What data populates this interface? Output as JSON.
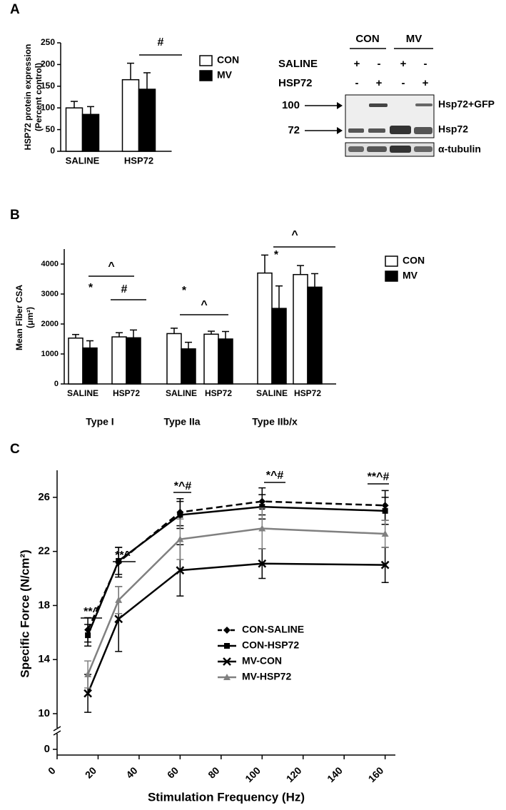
{
  "panels": [
    "A",
    "B",
    "C"
  ],
  "chart_data": [
    {
      "type": "bar",
      "categories": [
        "SALINE",
        "HSP72"
      ],
      "series": [
        {
          "name": "CON",
          "color": "#ffffff",
          "values": [
            100,
            165
          ],
          "errors": [
            15,
            38
          ]
        },
        {
          "name": "MV",
          "color": "#000000",
          "values": [
            85,
            143
          ],
          "errors": [
            18,
            38
          ]
        }
      ],
      "ylim": [
        0,
        250
      ],
      "yticks": [
        0,
        50,
        100,
        150,
        200,
        250
      ],
      "ylabel": [
        "HSP72 protein expression",
        "(Percent control)"
      ],
      "annotations": [
        "#"
      ]
    },
    {
      "type": "bar",
      "categories": [
        "SALINE",
        "HSP72",
        "SALINE",
        "HSP72",
        "SALINE",
        "HSP72"
      ],
      "groups": [
        "Type I",
        "Type IIa",
        "Type IIb/x"
      ],
      "series": [
        {
          "name": "CON",
          "color": "#ffffff",
          "values": [
            1530,
            1570,
            1680,
            1660,
            3700,
            3650
          ],
          "errors": [
            120,
            140,
            180,
            100,
            600,
            300
          ]
        },
        {
          "name": "MV",
          "color": "#000000",
          "values": [
            1200,
            1540,
            1170,
            1500,
            2520,
            3230
          ],
          "errors": [
            240,
            260,
            220,
            250,
            750,
            450
          ]
        }
      ],
      "ylim": [
        0,
        4500
      ],
      "yticks": [
        0,
        1000,
        2000,
        3000,
        4000
      ],
      "ylabel": [
        "Mean Fiber CSA",
        "(μm²)"
      ],
      "annotations": [
        "*",
        "^",
        "#",
        "*",
        "^",
        "*",
        "^"
      ]
    },
    {
      "type": "line",
      "x": [
        15,
        30,
        60,
        100,
        160
      ],
      "series": [
        {
          "name": "CON-SALINE",
          "color": "#000000",
          "marker": "diamond",
          "linestyle": "dashed",
          "values": [
            16.2,
            21.2,
            24.9,
            25.7,
            25.4
          ],
          "errors": [
            0.9,
            1.1,
            1.0,
            1.0,
            1.1
          ]
        },
        {
          "name": "CON-HSP72",
          "color": "#000000",
          "marker": "square",
          "linestyle": "solid",
          "values": [
            15.8,
            21.3,
            24.7,
            25.3,
            25.0
          ],
          "errors": [
            0.8,
            1.0,
            1.0,
            0.9,
            1.0
          ]
        },
        {
          "name": "MV-CON",
          "color": "#000000",
          "marker": "x",
          "linestyle": "solid",
          "values": [
            11.5,
            17.0,
            20.6,
            21.1,
            21.0
          ],
          "errors": [
            1.4,
            2.4,
            1.9,
            1.1,
            1.3
          ]
        },
        {
          "name": "MV-HSP72",
          "color": "#808080",
          "marker": "triangle",
          "linestyle": "solid",
          "values": [
            12.9,
            18.4,
            22.9,
            23.7,
            23.3
          ],
          "errors": [
            1.0,
            1.0,
            1.5,
            1.5,
            1.0
          ]
        }
      ],
      "xlim": [
        0,
        165
      ],
      "xticks": [
        0,
        20,
        40,
        60,
        80,
        100,
        120,
        140,
        160
      ],
      "ylim": [
        10,
        28
      ],
      "yticks": [
        10,
        14,
        18,
        22,
        26
      ],
      "axis_break_ticks": [
        0
      ],
      "xlabel": "Stimulation Frequency (Hz)",
      "ylabel": [
        "Specific Force (N/cm²)"
      ],
      "annotations": [
        "**^",
        "**^",
        "*^#",
        "*^#",
        "**^#"
      ]
    }
  ],
  "blot": {
    "groups": [
      "CON",
      "MV"
    ],
    "rows": [
      {
        "label": "SALINE",
        "marks": [
          "+",
          "-",
          "+",
          "-"
        ]
      },
      {
        "label": "HSP72",
        "marks": [
          "-",
          "+",
          "-",
          "+"
        ]
      }
    ],
    "markers": [
      "100",
      "72"
    ],
    "bands": [
      "Hsp72+GFP",
      "Hsp72",
      "α-tubulin"
    ]
  }
}
